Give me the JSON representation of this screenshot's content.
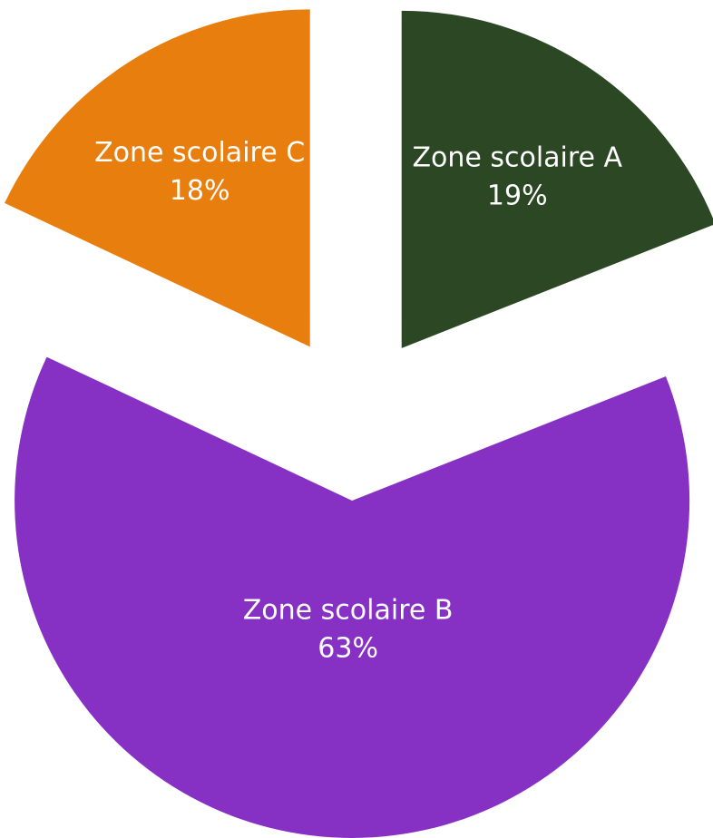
{
  "chart_data": {
    "type": "pie",
    "categories": [
      "Zone scolaire A",
      "Zone scolaire B",
      "Zone scolaire C"
    ],
    "values": [
      19,
      63,
      18
    ],
    "value_labels": [
      "19%",
      "63%",
      "18%"
    ],
    "colors": [
      "#2b4723",
      "#8730c4",
      "#e87e0e"
    ]
  }
}
